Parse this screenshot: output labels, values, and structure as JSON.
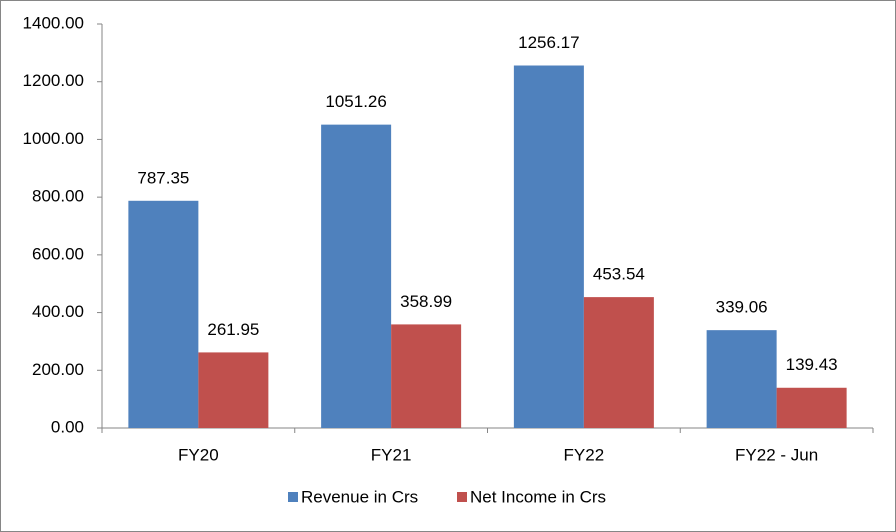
{
  "chart_data": {
    "type": "bar",
    "categories": [
      "FY20",
      "FY21",
      "FY22",
      "FY22 - Jun"
    ],
    "series": [
      {
        "name": "Revenue in Crs",
        "color": "#4f81bd",
        "values": [
          787.35,
          1051.26,
          1256.17,
          339.06
        ]
      },
      {
        "name": "Net Income in Crs",
        "color": "#c0504d",
        "values": [
          261.95,
          358.99,
          453.54,
          139.43
        ]
      }
    ],
    "ylim": [
      0,
      1400
    ],
    "yticks": [
      {
        "value": 0,
        "label": "0.00"
      },
      {
        "value": 200,
        "label": "200.00"
      },
      {
        "value": 400,
        "label": "400.00"
      },
      {
        "value": 600,
        "label": "600.00"
      },
      {
        "value": 800,
        "label": "800.00"
      },
      {
        "value": 1000,
        "label": "1000.00"
      },
      {
        "value": 1200,
        "label": "1200.00"
      },
      {
        "value": 1400,
        "label": "1400.00"
      }
    ],
    "grid": false,
    "legend": "bottom"
  }
}
